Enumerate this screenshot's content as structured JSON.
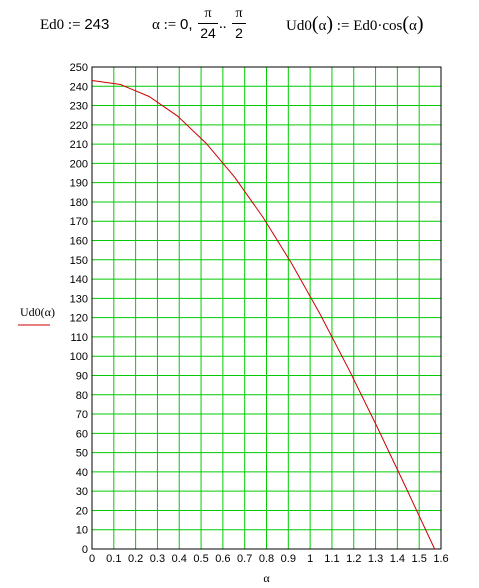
{
  "formula": {
    "ed0_lhs": "Ed0",
    "ed0_assign": ":=",
    "ed0_value": "243",
    "alpha_lhs": "α",
    "alpha_assign": ":=",
    "alpha_start": "0,",
    "step_num": "π",
    "step_den": "24",
    "range_dots": "..",
    "end_num": "π",
    "end_den": "2",
    "ud0_lhs": "Ud0",
    "ud0_arg": "α",
    "ud0_assign": ":=",
    "ud0_rhs_a": "Ed0·cos",
    "ud0_rhs_arg": "α"
  },
  "chart_data": {
    "type": "line",
    "xlabel": "α",
    "ylabel": "Ud0(α)",
    "xlim": [
      0,
      1.6
    ],
    "ylim": [
      0,
      250
    ],
    "x_ticks": [
      "0",
      "0.1",
      "0.2",
      "0.3",
      "0.4",
      "0.5",
      "0.6",
      "0.7",
      "0.8",
      "0.9",
      "1",
      "1.1",
      "1.2",
      "1.3",
      "1.4",
      "1.5",
      "1.6"
    ],
    "y_ticks": [
      "0",
      "10",
      "20",
      "30",
      "40",
      "50",
      "60",
      "70",
      "80",
      "90",
      "100",
      "110",
      "120",
      "130",
      "140",
      "150",
      "160",
      "170",
      "180",
      "190",
      "200",
      "210",
      "220",
      "230",
      "240",
      "250"
    ],
    "grid": true,
    "grid_color": "#00cc00",
    "series": [
      {
        "name": "Ud0(α)",
        "color": "#cc0000",
        "x": [
          0,
          0.1309,
          0.2618,
          0.3927,
          0.5236,
          0.6545,
          0.7854,
          0.9163,
          1.0472,
          1.1781,
          1.309,
          1.4399,
          1.5708
        ],
        "y": [
          243.0,
          240.9,
          234.7,
          224.5,
          210.4,
          192.8,
          171.8,
          147.9,
          121.5,
          93.0,
          62.9,
          31.7,
          0.0
        ]
      }
    ]
  }
}
